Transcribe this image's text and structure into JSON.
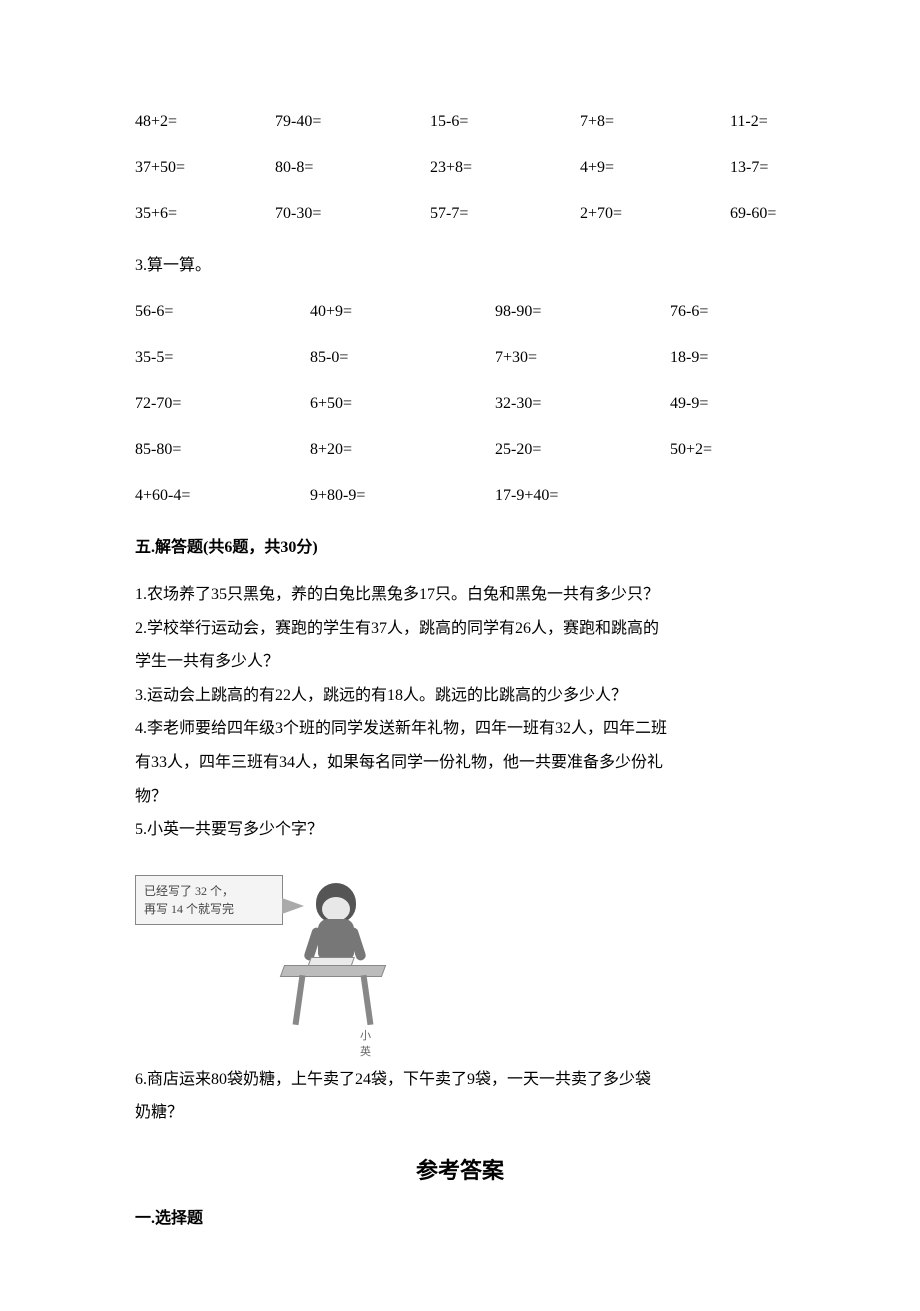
{
  "arith_block_a": {
    "rows": [
      [
        "48+2=",
        "79-40=",
        "15-6=",
        "7+8=",
        "11-2="
      ],
      [
        "37+50=",
        "80-8=",
        "23+8=",
        "4+9=",
        "13-7="
      ],
      [
        "35+6=",
        "70-30=",
        "57-7=",
        "2+70=",
        "69-60="
      ]
    ]
  },
  "q3_label": "3.算一算。",
  "arith_block_b": {
    "rows": [
      [
        "56-6=",
        "40+9=",
        "98-90=",
        "76-6="
      ],
      [
        "35-5=",
        "85-0=",
        "7+30=",
        "18-9="
      ],
      [
        "72-70=",
        "6+50=",
        "32-30=",
        "49-9="
      ],
      [
        "85-80=",
        "8+20=",
        "25-20=",
        "50+2="
      ]
    ]
  },
  "arith_block_c": {
    "rows": [
      [
        "4+60-4=",
        "9+80-9=",
        "17-9+40="
      ]
    ]
  },
  "section5_heading": "五.解答题(共6题，共30分)",
  "problems": {
    "p1": "1.农场养了35只黑兔，养的白兔比黑兔多17只。白兔和黑兔一共有多少只？",
    "p2a": "2.学校举行运动会，赛跑的学生有37人，跳高的同学有26人，赛跑和跳高的",
    "p2b": "学生一共有多少人？",
    "p3": "3.运动会上跳高的有22人，跳远的有18人。跳远的比跳高的少多少人？",
    "p4a": "4.李老师要给四年级3个班的同学发送新年礼物，四年一班有32人，四年二班",
    "p4b": "有33人，四年三班有34人，如果每名同学一份礼物，他一共要准备多少份礼",
    "p4c": "物？",
    "p5": "5.小英一共要写多少个字？",
    "p6a": "6.商店运来80袋奶糖，上午卖了24袋，下午卖了9袋，一天一共卖了多少袋",
    "p6b": "奶糖？"
  },
  "speech": {
    "line1": "已经写了 32 个，",
    "line2": "再写 14 个就写完"
  },
  "figure_caption": "小英",
  "answers_title": "参考答案",
  "answers_section1": "一.选择题"
}
